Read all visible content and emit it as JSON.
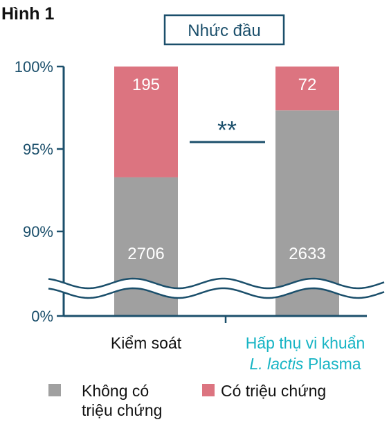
{
  "figure_label": "Hình 1",
  "colors": {
    "no_symptom": "#a0a0a0",
    "symptom": "#dc7480",
    "axis": "#1b4f6b",
    "category_control": "#111111",
    "category_treatment": "#16b4c4"
  },
  "chart_data": {
    "type": "bar",
    "stacked": true,
    "title": "Nhức đầu",
    "xlabel": "",
    "ylabel": "",
    "y_axis": {
      "broken": true,
      "break_between": [
        0,
        88
      ],
      "upper_range": [
        88,
        100
      ],
      "ticks": [
        {
          "value": 100,
          "label": "100%"
        },
        {
          "value": 95,
          "label": "95%"
        },
        {
          "value": 90,
          "label": "90%"
        },
        {
          "value": 0,
          "label": "0%"
        }
      ]
    },
    "categories": [
      {
        "lines": [
          "Kiểm soát"
        ]
      },
      {
        "lines": [
          "Hấp thụ vi khuẩn",
          "L. lactis Plasma"
        ]
      }
    ],
    "series": [
      {
        "name": "Không có triệu chứng",
        "counts": [
          2706,
          2633
        ],
        "percent": [
          93.28,
          97.34
        ]
      },
      {
        "name": "Có triệu chứng",
        "counts": [
          195,
          72
        ],
        "percent": [
          6.72,
          2.66
        ]
      }
    ],
    "significance": {
      "label": "**",
      "between": [
        0,
        1
      ]
    },
    "legend": {
      "placement": "bottom",
      "items": [
        {
          "lines": [
            "Không có",
            "triệu chứng"
          ]
        },
        {
          "lines": [
            "Có triệu chứng"
          ]
        }
      ]
    }
  }
}
